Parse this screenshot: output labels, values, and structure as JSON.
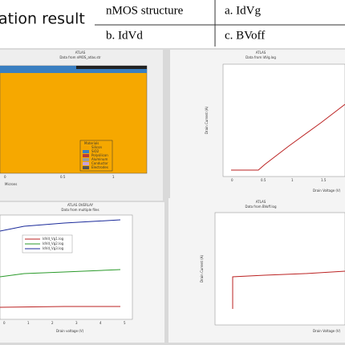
{
  "header": {
    "title": "ation result"
  },
  "table": {
    "rows": [
      [
        "nMOS structure",
        "a. IdVg"
      ],
      [
        "b. IdVd",
        "c. BVoff"
      ]
    ]
  },
  "panels": [
    {
      "app": "ATLAS",
      "subtitle": "Data from nMOS_atlas.str",
      "x_label": "Microns",
      "legend_title": "Materials",
      "legend": [
        "Silicon",
        "SiO2",
        "Polysilicon",
        "Aluminum",
        "Conductor",
        "Electrodes"
      ],
      "xticks": [
        "0",
        "0.5",
        "1"
      ]
    },
    {
      "app": "ATLAS",
      "subtitle": "Data from IdVg.log",
      "x_label": "Drain Voltage (V)",
      "y_label": "Drain Current (A)",
      "xticks": [
        "0",
        "0.5",
        "1",
        "1.5"
      ]
    },
    {
      "app": "ATLAS OVERLAY",
      "subtitle": "Data from multiple files",
      "x_label": "Drain voltage (V)",
      "legend": [
        "IdVd_Vg1.log",
        "IdVd_Vg2.log",
        "IdVd_Vg3.log"
      ],
      "xticks": [
        "0",
        "1",
        "2",
        "3",
        "4",
        "5"
      ]
    },
    {
      "app": "ATLAS",
      "subtitle": "Data from BVoff.log",
      "x_label": "Drain Voltage (V)",
      "y_label": "Drain Current (A)"
    }
  ]
}
